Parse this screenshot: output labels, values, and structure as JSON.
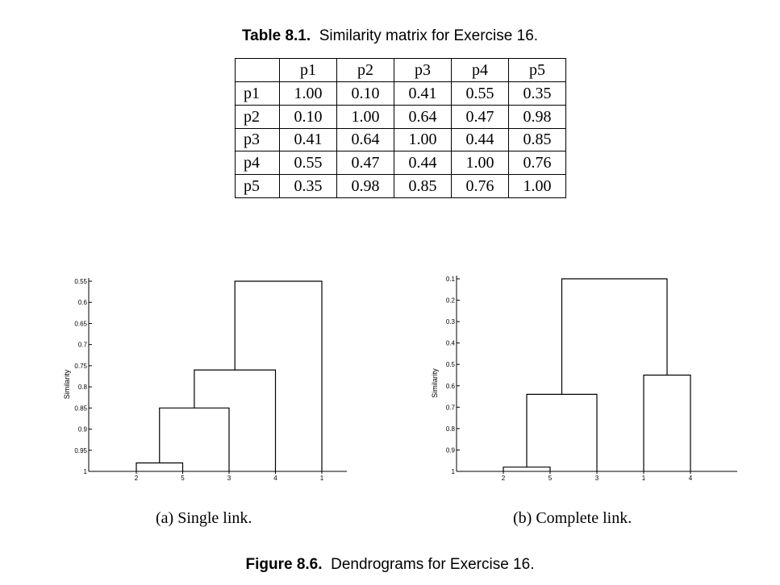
{
  "table": {
    "caption_label": "Table 8.1.",
    "caption_text": "Similarity matrix for Exercise 16.",
    "columns": [
      "p1",
      "p2",
      "p3",
      "p4",
      "p5"
    ],
    "rows": [
      {
        "label": "p1",
        "values": [
          "1.00",
          "0.10",
          "0.41",
          "0.55",
          "0.35"
        ]
      },
      {
        "label": "p2",
        "values": [
          "0.10",
          "1.00",
          "0.64",
          "0.47",
          "0.98"
        ]
      },
      {
        "label": "p3",
        "values": [
          "0.41",
          "0.64",
          "1.00",
          "0.44",
          "0.85"
        ]
      },
      {
        "label": "p4",
        "values": [
          "0.55",
          "0.47",
          "0.44",
          "1.00",
          "0.76"
        ]
      },
      {
        "label": "p5",
        "values": [
          "0.35",
          "0.98",
          "0.85",
          "0.76",
          "1.00"
        ]
      }
    ]
  },
  "chart_data": [
    {
      "type": "dendrogram",
      "ylabel": "Similarity",
      "ylim": [
        0.55,
        1
      ],
      "yticks": [
        "0.55",
        "0.6",
        "0.65",
        "0.7",
        "0.75",
        "0.8",
        "0.85",
        "0.9",
        "0.95",
        "1"
      ],
      "leaf_order": [
        "2",
        "5",
        "3",
        "4",
        "1"
      ],
      "merges": [
        {
          "left": "2",
          "right": "5",
          "similarity": 0.98
        },
        {
          "left": "2,5",
          "right": "3",
          "similarity": 0.85
        },
        {
          "left": "2,5,3",
          "right": "4",
          "similarity": 0.76
        },
        {
          "left": "2,5,3,4",
          "right": "1",
          "similarity": 0.55
        }
      ],
      "subcaption": "(a) Single link."
    },
    {
      "type": "dendrogram",
      "ylabel": "Similarity",
      "ylim": [
        0.1,
        1
      ],
      "yticks": [
        "0.1",
        "0.2",
        "0.3",
        "0.4",
        "0.5",
        "0.6",
        "0.7",
        "0.8",
        "0.9",
        "1"
      ],
      "leaf_order": [
        "2",
        "5",
        "3",
        "1",
        "4"
      ],
      "merges": [
        {
          "left": "2",
          "right": "5",
          "similarity": 0.98
        },
        {
          "left": "1",
          "right": "4",
          "similarity": 0.55
        },
        {
          "left": "2,5",
          "right": "3",
          "similarity": 0.64
        },
        {
          "left": "2,5,3",
          "right": "1,4",
          "similarity": 0.1
        }
      ],
      "subcaption": "(b) Complete link."
    }
  ],
  "figure": {
    "caption_label": "Figure 8.6.",
    "caption_text": "Dendrograms for Exercise 16."
  }
}
